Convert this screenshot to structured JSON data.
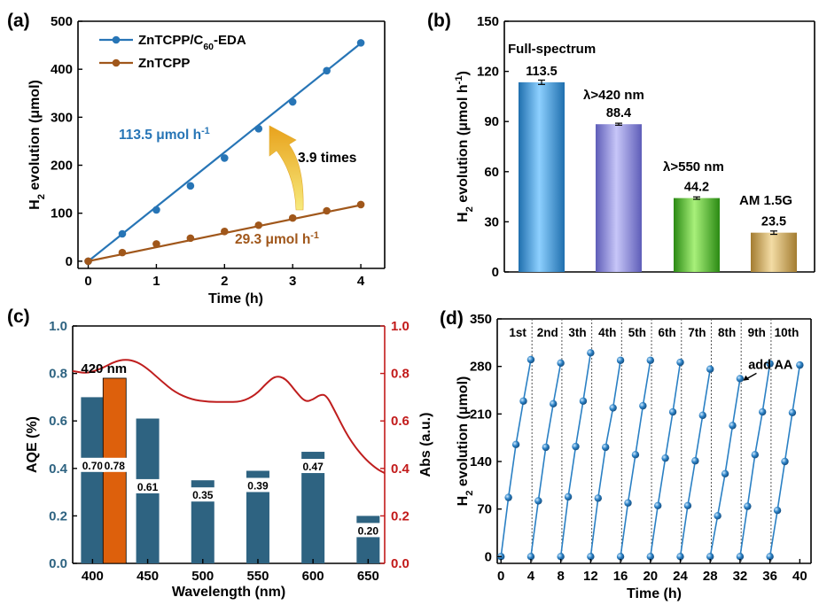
{
  "chart_data": [
    {
      "panel": "(a)",
      "type": "line",
      "xlabel": "Time (h)",
      "ylabel": "H2 evolution (μmol)",
      "xlim": [
        -0.15,
        4.35
      ],
      "ylim": [
        -15,
        500
      ],
      "xticks": [
        0,
        1,
        2,
        3,
        4
      ],
      "yticks": [
        0,
        100,
        200,
        300,
        400,
        500
      ],
      "series": [
        {
          "name": "ZnTCPP/C60-EDA",
          "color": "#2775b6",
          "x": [
            0,
            0.5,
            1,
            1.5,
            2,
            2.5,
            3,
            3.5,
            4
          ],
          "y": [
            0,
            57,
            107,
            157,
            215,
            276,
            332,
            397,
            455
          ],
          "fit": [
            [
              0,
              0
            ],
            [
              4,
              454
            ]
          ],
          "annotation": "113.5 μmol h-1"
        },
        {
          "name": "ZnTCPP",
          "color": "#a0571b",
          "x": [
            0,
            0.5,
            1,
            1.5,
            2,
            2.5,
            3,
            3.5,
            4
          ],
          "y": [
            0,
            18,
            36,
            48,
            62,
            75,
            90,
            105,
            118
          ],
          "fit": [
            [
              0,
              0
            ],
            [
              4,
              117
            ]
          ],
          "annotation": "29.3 μmol h-1"
        }
      ],
      "arrow_label": "3.9 times"
    },
    {
      "panel": "(b)",
      "type": "bar",
      "ylabel": "H2 evolution (μmol h-1)",
      "ylim": [
        0,
        150
      ],
      "yticks": [
        0,
        30,
        60,
        90,
        120,
        150
      ],
      "categories": [
        "Full-spectrum",
        "λ>420 nm",
        "λ>550 nm",
        "AM 1.5G"
      ],
      "values": [
        113.5,
        88.4,
        44.2,
        23.5
      ],
      "errors": [
        1.3,
        0.6,
        0.7,
        1.0
      ],
      "value_labels": [
        "113.5",
        "88.4",
        "44.2",
        "23.5"
      ],
      "colors": [
        "#3d9ee0",
        "#8f8ee0",
        "#46b22a",
        "#c9a45a"
      ]
    },
    {
      "panel": "(c)",
      "type": "bar",
      "xlabel": "Wavelength (nm)",
      "ylabel": "AQE (%)",
      "y2label": "Abs (a.u.)",
      "xlim": [
        382,
        665
      ],
      "xticks": [
        400,
        450,
        500,
        550,
        600,
        650
      ],
      "ylim": [
        0,
        1.0
      ],
      "yticks": [
        0.0,
        0.2,
        0.4,
        0.6,
        0.8,
        1.0
      ],
      "y2ticks": [
        0.0,
        0.2,
        0.4,
        0.6,
        0.8,
        1.0
      ],
      "bars": [
        {
          "x": 400,
          "value": 0.7,
          "label": "0.70",
          "color": "#2e6381"
        },
        {
          "x": 420,
          "value": 0.78,
          "label": "0.78",
          "color": "#dd600c"
        },
        {
          "x": 450,
          "value": 0.61,
          "label": "0.61",
          "color": "#2e6381"
        },
        {
          "x": 500,
          "value": 0.35,
          "label": "0.35",
          "color": "#2e6381"
        },
        {
          "x": 550,
          "value": 0.39,
          "label": "0.39",
          "color": "#2e6381"
        },
        {
          "x": 600,
          "value": 0.47,
          "label": "0.47",
          "color": "#2e6381"
        },
        {
          "x": 650,
          "value": 0.2,
          "label": "0.20",
          "color": "#2e6381"
        }
      ],
      "highlight_label": "420 nm",
      "abs_curve": {
        "color": "#bf1e1e",
        "x": [
          382,
          395,
          408,
          420,
          430,
          440,
          450,
          462,
          475,
          490,
          505,
          520,
          535,
          548,
          558,
          566,
          575,
          585,
          593,
          600,
          606,
          612,
          620,
          632,
          645,
          657,
          665
        ],
        "y": [
          0.81,
          0.8,
          0.82,
          0.85,
          0.86,
          0.85,
          0.82,
          0.77,
          0.72,
          0.69,
          0.68,
          0.68,
          0.68,
          0.71,
          0.76,
          0.79,
          0.78,
          0.72,
          0.68,
          0.69,
          0.71,
          0.71,
          0.64,
          0.53,
          0.45,
          0.4,
          0.38
        ]
      }
    },
    {
      "panel": "(d)",
      "type": "scatter",
      "xlabel": "Time (h)",
      "ylabel": "H2 evolution (μmol)",
      "xlim": [
        -0.5,
        41.5
      ],
      "ylim": [
        -10,
        350
      ],
      "xticks": [
        0,
        4,
        8,
        12,
        16,
        20,
        24,
        28,
        32,
        36,
        40
      ],
      "yticks": [
        0,
        70,
        140,
        210,
        280,
        350
      ],
      "cycle_labels": [
        "1st",
        "2nd",
        "3th",
        "4th",
        "5th",
        "6th",
        "7th",
        "8th",
        "9th",
        "10th"
      ],
      "cycles": [
        [
          0,
          87,
          165,
          229,
          290
        ],
        [
          0,
          82,
          161,
          225,
          285
        ],
        [
          0,
          88,
          162,
          229,
          300
        ],
        [
          0,
          86,
          161,
          219,
          289
        ],
        [
          0,
          79,
          150,
          222,
          289
        ],
        [
          0,
          75,
          145,
          213,
          286
        ],
        [
          0,
          75,
          141,
          208,
          276
        ],
        [
          0,
          60,
          122,
          193,
          262
        ],
        [
          0,
          74,
          150,
          213,
          284
        ],
        [
          0,
          68,
          140,
          212,
          282
        ]
      ],
      "annotation": "add AA",
      "color": "#2a80c4"
    }
  ],
  "panels": {
    "a": {
      "letter": "(a)"
    },
    "b": {
      "letter": "(b)"
    },
    "c": {
      "letter": "(c)"
    },
    "d": {
      "letter": "(d)"
    }
  }
}
